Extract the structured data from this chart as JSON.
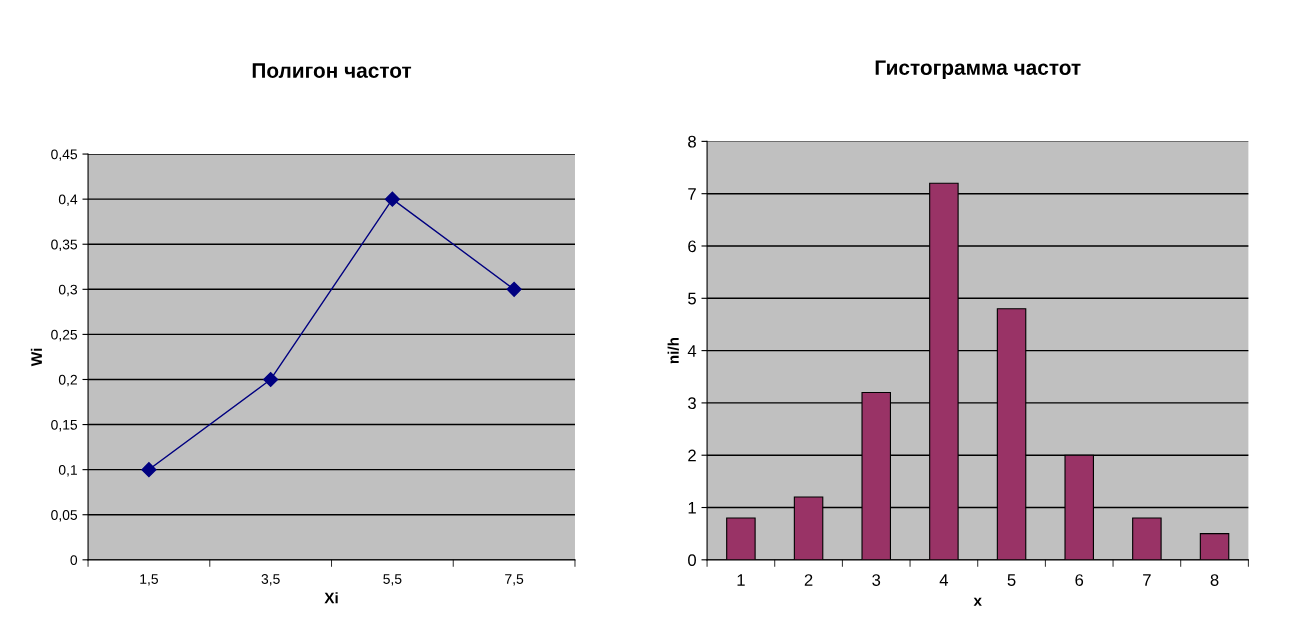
{
  "chart_data": [
    {
      "type": "line",
      "title": "Полигон частот",
      "xlabel": "Xi",
      "ylabel": "Wi",
      "categories": [
        "1,5",
        "3,5",
        "5,5",
        "7,5"
      ],
      "series": [
        {
          "color": "#000080",
          "values": [
            0.1,
            0.2,
            0.4,
            0.3
          ]
        }
      ],
      "ylim": [
        0,
        0.45
      ],
      "yticks": [
        0,
        {
          "value": 0.05,
          "label": "0,05"
        },
        {
          "value": 0.1,
          "label": "0,1"
        },
        {
          "value": 0.15,
          "label": "0,15"
        },
        {
          "value": 0.2,
          "label": "0,2"
        },
        {
          "value": 0.25,
          "label": "0,25"
        },
        {
          "value": 0.3,
          "label": "0,3"
        },
        {
          "value": 0.35,
          "label": "0,35"
        },
        {
          "value": 0.4,
          "label": "0,4"
        },
        {
          "value": 0.45,
          "label": "0,45"
        }
      ],
      "grid": "y",
      "marker": "diamond",
      "line_style": "solid",
      "legend": false
    },
    {
      "type": "bar",
      "title": "Гистограмма частот",
      "xlabel": "x",
      "ylabel": "ni/h",
      "categories": [
        "1",
        "2",
        "3",
        "4",
        "5",
        "6",
        "7",
        "8"
      ],
      "series": [
        {
          "color": "#993366",
          "values": [
            0.8,
            1.2,
            3.2,
            7.2,
            4.8,
            2,
            0.8,
            0.5
          ]
        }
      ],
      "ylim": [
        0,
        8
      ],
      "yticks": [
        0,
        1,
        2,
        3,
        4,
        5,
        6,
        7,
        8
      ],
      "grid": "y",
      "legend": false
    }
  ]
}
